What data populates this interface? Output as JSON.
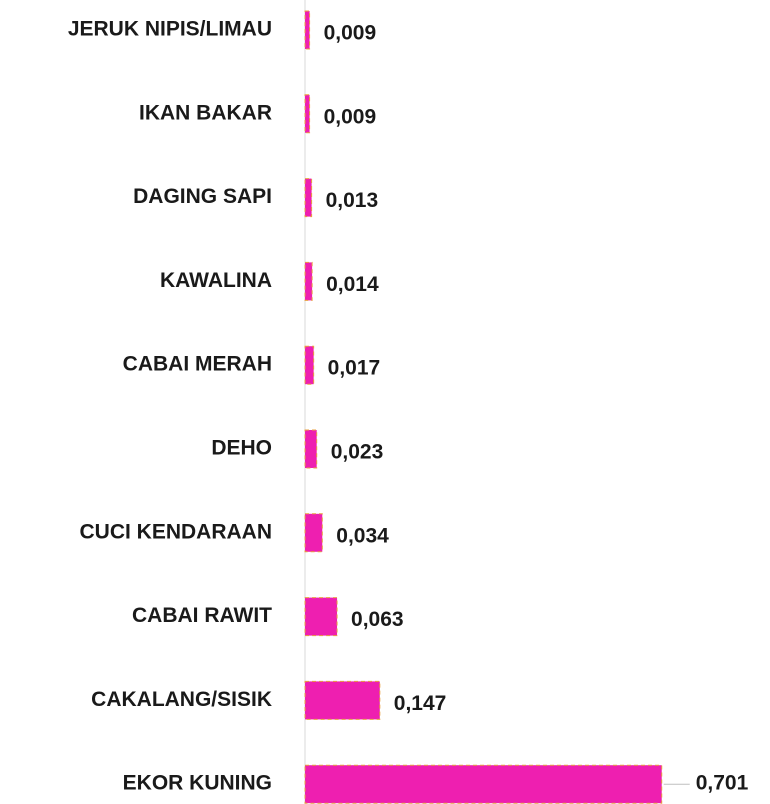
{
  "chart_data": {
    "type": "hbar",
    "categories": [
      "JERUK NIPIS/LIMAU",
      "IKAN BAKAR",
      "DAGING SAPI",
      "KAWALINA",
      "CABAI MERAH",
      "DEHO",
      "CUCI KENDARAAN",
      "CABAI RAWIT",
      "CAKALANG/SISIK",
      "EKOR KUNING"
    ],
    "values": [
      0.009,
      0.009,
      0.013,
      0.014,
      0.017,
      0.023,
      0.034,
      0.063,
      0.147,
      0.701
    ],
    "value_labels": [
      "0,009",
      "0,009",
      "0,013",
      "0,014",
      "0,017",
      "0,023",
      "0,034",
      "0,063",
      "0,147",
      "0,701"
    ],
    "color": "#ee1fb0",
    "xlim": [
      0,
      0.9
    ]
  }
}
